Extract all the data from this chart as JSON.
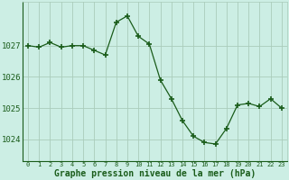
{
  "x": [
    0,
    1,
    2,
    3,
    4,
    5,
    6,
    7,
    8,
    9,
    10,
    11,
    12,
    13,
    14,
    15,
    16,
    17,
    18,
    19,
    20,
    21,
    22,
    23
  ],
  "y": [
    1027.0,
    1026.95,
    1027.1,
    1026.95,
    1027.0,
    1027.0,
    1026.85,
    1026.7,
    1027.75,
    1027.95,
    1027.3,
    1027.05,
    1025.9,
    1025.3,
    1024.6,
    1024.1,
    1023.9,
    1023.85,
    1024.35,
    1025.1,
    1025.15,
    1025.05,
    1025.3,
    1025.0
  ],
  "line_color": "#1a5c1a",
  "marker": "+",
  "marker_size": 4,
  "bg_color": "#cceee4",
  "grid_color": "#aaccbb",
  "xlabel": "Graphe pression niveau de la mer (hPa)",
  "xlabel_fontsize": 7.0,
  "ylabel_ticks": [
    1024,
    1025,
    1026,
    1027
  ],
  "ylim": [
    1023.3,
    1028.4
  ],
  "xlim": [
    -0.5,
    23.5
  ],
  "axis_color": "#1a5c1a"
}
